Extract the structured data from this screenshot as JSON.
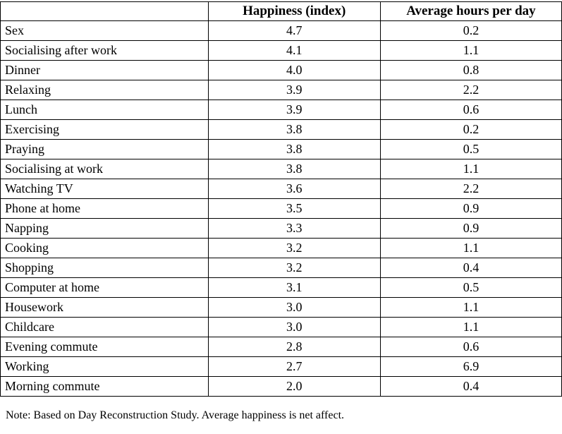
{
  "chart_data": {
    "type": "table",
    "title": "",
    "columns": [
      "",
      "Happiness (index)",
      "Average hours per day"
    ],
    "rows": [
      [
        "Sex",
        "4.7",
        "0.2"
      ],
      [
        "Socialising after work",
        "4.1",
        "1.1"
      ],
      [
        "Dinner",
        "4.0",
        "0.8"
      ],
      [
        "Relaxing",
        "3.9",
        "2.2"
      ],
      [
        "Lunch",
        "3.9",
        "0.6"
      ],
      [
        "Exercising",
        "3.8",
        "0.2"
      ],
      [
        "Praying",
        "3.8",
        "0.5"
      ],
      [
        "Socialising at work",
        "3.8",
        "1.1"
      ],
      [
        "Watching TV",
        "3.6",
        "2.2"
      ],
      [
        "Phone at home",
        "3.5",
        "0.9"
      ],
      [
        "Napping",
        "3.3",
        "0.9"
      ],
      [
        "Cooking",
        "3.2",
        "1.1"
      ],
      [
        "Shopping",
        "3.2",
        "0.4"
      ],
      [
        "Computer at home",
        "3.1",
        "0.5"
      ],
      [
        "Housework",
        "3.0",
        "1.1"
      ],
      [
        "Childcare",
        "3.0",
        "1.1"
      ],
      [
        "Evening commute",
        "2.8",
        "0.6"
      ],
      [
        "Working",
        "2.7",
        "6.9"
      ],
      [
        "Morning commute",
        "2.0",
        "0.4"
      ]
    ]
  },
  "note": "Note: Based on Day Reconstruction Study.  Average happiness is net affect."
}
